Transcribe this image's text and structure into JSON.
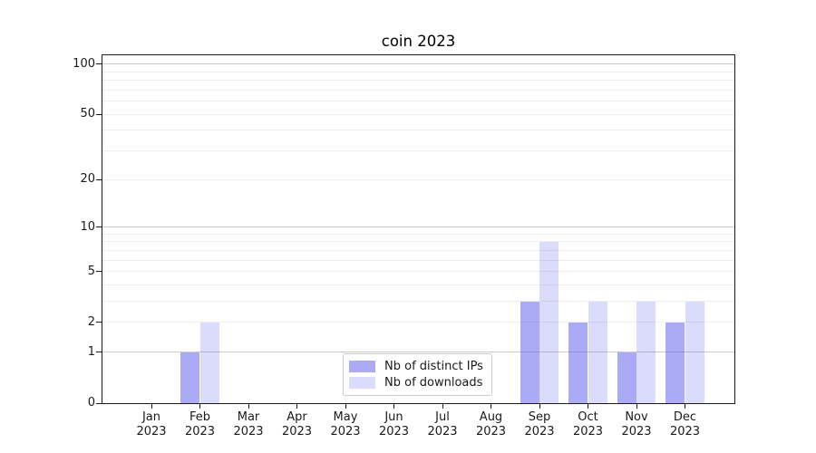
{
  "chart_data": {
    "type": "bar",
    "title": "coin 2023",
    "categories": [
      "Jan",
      "Feb",
      "Mar",
      "Apr",
      "May",
      "Jun",
      "Jul",
      "Aug",
      "Sep",
      "Oct",
      "Nov",
      "Dec"
    ],
    "x_year": "2023",
    "series": [
      {
        "name": "Nb of distinct IPs",
        "color": "rgba(85,85,240,0.50)",
        "color_hex": "#aaaaf7",
        "values": [
          0,
          1,
          0,
          0,
          0,
          0,
          0,
          0,
          3,
          2,
          1,
          2
        ]
      },
      {
        "name": "Nb of downloads",
        "color": "rgba(85,85,240,0.21)",
        "color_hex": "#dcdcfa",
        "values": [
          0,
          2,
          0,
          0,
          0,
          0,
          0,
          0,
          8,
          3,
          3,
          3
        ]
      }
    ],
    "yscale": "log1p",
    "ylim": [
      0,
      113
    ],
    "yticks": [
      {
        "label": "100",
        "value": 100
      },
      {
        "label": "50",
        "value": 50
      },
      {
        "label": "20",
        "value": 20
      },
      {
        "label": "10",
        "value": 10
      },
      {
        "label": "5",
        "value": 5
      },
      {
        "label": "2",
        "value": 2
      },
      {
        "label": "1",
        "value": 1
      },
      {
        "label": "0",
        "value": 0
      }
    ],
    "grid": {
      "major_values": [
        1,
        10,
        100
      ],
      "minor_values": [
        2,
        3,
        4,
        5,
        6,
        7,
        8,
        9,
        20,
        30,
        40,
        50,
        60,
        70,
        80,
        90
      ],
      "major_color": "#c9c9c9",
      "minor_color": "#eeeeee"
    },
    "legend": {
      "position": "lower center"
    }
  },
  "colors": {
    "spine": "#1a1a1a",
    "text": "#1a1a1a",
    "background": "#ffffff"
  }
}
